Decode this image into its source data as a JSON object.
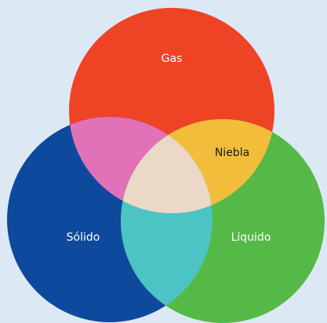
{
  "sets": [
    {
      "label": "Gas"
    },
    {
      "label": "Sólido"
    },
    {
      "label": "Líquido"
    }
  ],
  "intersections": [
    {
      "label": "Niebla"
    }
  ]
}
